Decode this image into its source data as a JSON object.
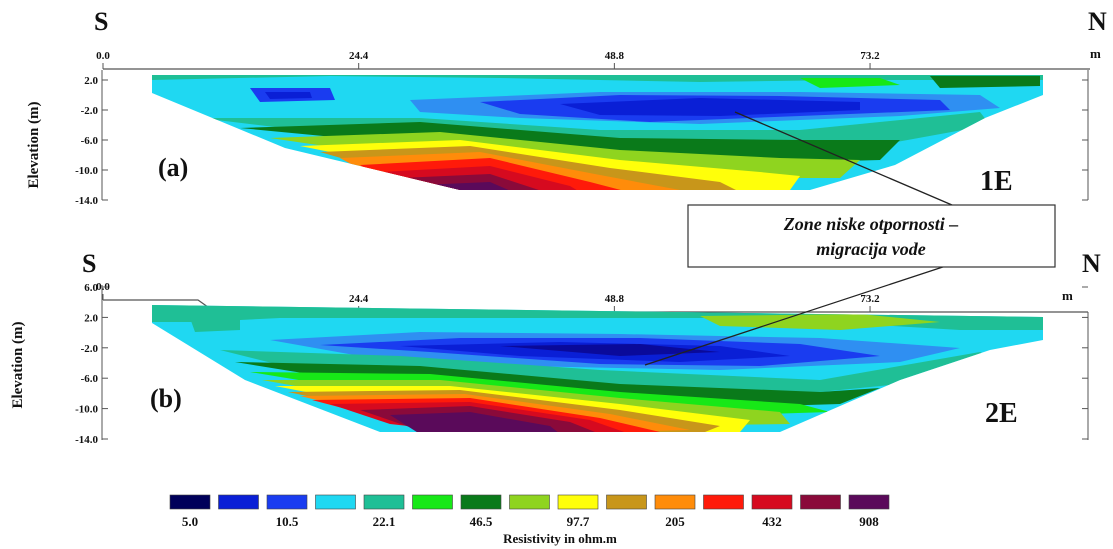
{
  "chart_data": [
    {
      "type": "heatmap",
      "panel_label": "(a)",
      "profile_label": "1E",
      "left_label": "S",
      "right_label": "N",
      "x_unit": "m",
      "x_ticks": [
        "0.0",
        "24.4",
        "48.8",
        "73.2"
      ],
      "x_tick_values": [
        0.0,
        24.4,
        48.8,
        73.2
      ],
      "ylabel": "Elevation (m)",
      "y_ticks": [
        "2.0",
        "-2.0",
        "-6.0",
        "-10.0",
        "-14.0"
      ],
      "y_tick_values": [
        2.0,
        -2.0,
        -6.0,
        -10.0,
        -14.0
      ],
      "ylim": [
        -14.0,
        2.0
      ],
      "xlim": [
        0.0,
        94.0
      ]
    },
    {
      "type": "heatmap",
      "panel_label": "(b)",
      "profile_label": "2E",
      "left_label": "S",
      "right_label": "N",
      "x_unit": "m",
      "x_ticks": [
        "0.0",
        "24.4",
        "48.8",
        "73.2"
      ],
      "x_tick_values": [
        0.0,
        24.4,
        48.8,
        73.2
      ],
      "ylabel": "Elevation (m)",
      "y_ticks": [
        "6.0",
        "2.0",
        "-2.0",
        "-6.0",
        "-10.0",
        "-14.0"
      ],
      "y_tick_values": [
        6.0,
        2.0,
        -2.0,
        -6.0,
        -10.0,
        -14.0
      ],
      "ylim": [
        -14.0,
        6.0
      ],
      "xlim": [
        0.0,
        94.0
      ]
    }
  ],
  "annotation": {
    "line1": "Zone niske otpornosti –",
    "line2": "migracija vode"
  },
  "legend": {
    "title": "Resistivity in ohm.m",
    "colors": [
      "#00005a",
      "#0a0a9a",
      "#0a1fd6",
      "#1a3cf0",
      "#2f8ff2",
      "#1fd8f2",
      "#1fbf96",
      "#17e817",
      "#0a7a1a",
      "#8fd41f",
      "#ffff0a",
      "#c8961a",
      "#ff8c0a",
      "#ff1a0a",
      "#d60a1f",
      "#8a0a3a",
      "#5a0a5a"
    ],
    "labels": [
      "5.0",
      "10.5",
      "22.1",
      "46.5",
      "97.7",
      "205",
      "432",
      "908"
    ]
  }
}
